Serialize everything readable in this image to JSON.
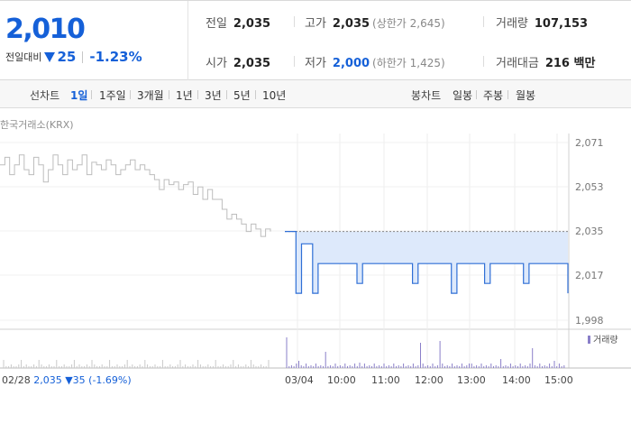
{
  "header": {
    "current_price": "2,010",
    "change_label": "전일대비",
    "change_value": "25",
    "change_pct": "-1.23%",
    "down_color": "#1560d8",
    "direction_icon": "triangle-down-icon"
  },
  "info": {
    "prev_close": {
      "label": "전일",
      "value": "2,035"
    },
    "open": {
      "label": "시가",
      "value": "2,035"
    },
    "high": {
      "label": "고가",
      "value": "2,035",
      "sub": "(상한가 2,645)"
    },
    "low": {
      "label": "저가",
      "value": "2,000",
      "sub": "(하한가 1,425)"
    },
    "volume": {
      "label": "거래량",
      "value": "107,153"
    },
    "amount": {
      "label": "거래대금",
      "value": "216 백만"
    }
  },
  "tabs": {
    "line_title": "선차트",
    "line_items": [
      "1일",
      "1주일",
      "3개월",
      "1년",
      "3년",
      "5년",
      "10년"
    ],
    "active": "1일",
    "candle_title": "봉차트",
    "candle_items": [
      "일봉",
      "주봉",
      "월봉"
    ]
  },
  "chart": {
    "source": "한국거래소(KRX)",
    "volume_legend": "거래량",
    "prev_day": {
      "date": "02/28",
      "price": "2,035",
      "change": "▼35",
      "pct": "(-1.69%)"
    }
  },
  "chart_data": {
    "type": "line",
    "y_ticks": [
      "2,071",
      "2,053",
      "2,035",
      "2,017",
      "1,998"
    ],
    "ylim": [
      1998,
      2071
    ],
    "x_ticks": [
      "03/04",
      "10:00",
      "11:00",
      "12:00",
      "13:00",
      "14:00",
      "15:00"
    ],
    "prev_close": 2035,
    "series": [
      {
        "values": [
          2035,
          2035,
          2010,
          2030,
          2030,
          2010,
          2022,
          2022,
          2022,
          2022,
          2022,
          2022,
          2022,
          2014,
          2022,
          2022,
          2022,
          2022,
          2022,
          2022,
          2022,
          2022,
          2022,
          2014,
          2022,
          2022,
          2022,
          2022,
          2022,
          2022,
          2010,
          2022,
          2022,
          2022,
          2022,
          2022,
          2014,
          2022,
          2022,
          2022,
          2022,
          2022,
          2022,
          2014,
          2022,
          2022,
          2022,
          2022,
          2022,
          2022,
          2022,
          2010
        ]
      }
    ],
    "prev_day_series": {
      "values": [
        2062,
        2065,
        2058,
        2062,
        2066,
        2060,
        2058,
        2065,
        2062,
        2055,
        2060,
        2066,
        2062,
        2058,
        2064,
        2060,
        2062,
        2066,
        2058,
        2063,
        2062,
        2060,
        2064,
        2062,
        2058,
        2060,
        2062,
        2064,
        2060,
        2062,
        2060,
        2058,
        2056,
        2052,
        2056,
        2054,
        2055,
        2052,
        2054,
        2055,
        2050,
        2053,
        2048,
        2052,
        2048,
        2048,
        2044,
        2040,
        2042,
        2040,
        2038,
        2035,
        2038,
        2036,
        2033,
        2036,
        2035
      ]
    }
  }
}
